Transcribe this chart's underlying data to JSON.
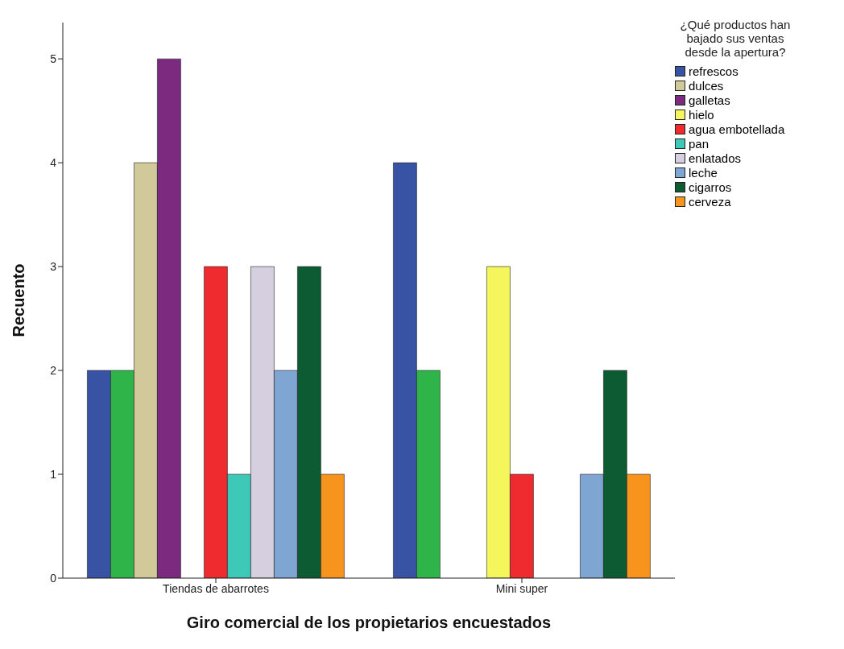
{
  "chart_data": {
    "type": "bar",
    "xlabel": "Giro comercial de los propietarios encuestados",
    "ylabel": "Recuento",
    "legend_title": "¿Qué productos han bajado sus ventas desde la apertura?",
    "categories": [
      "Tiendas de abarrotes",
      "Mini super"
    ],
    "ylim": [
      0,
      5.35
    ],
    "yticks": [
      0,
      1,
      2,
      3,
      4,
      5
    ],
    "legend": "right",
    "series": [
      {
        "name": "refrescos",
        "color": "#3953a4",
        "values": [
          2,
          4
        ]
      },
      {
        "color": "#2fb44a",
        "values": [
          2,
          2
        ]
      },
      {
        "name": "dulces",
        "color": "#d2c99a",
        "values": [
          4,
          0
        ]
      },
      {
        "name": "galletas",
        "color": "#7b2a7f",
        "values": [
          5,
          0
        ]
      },
      {
        "name": "hielo",
        "color": "#f5f55c",
        "values": [
          0,
          3
        ]
      },
      {
        "name": "agua embotellada",
        "color": "#ef2b2f",
        "values": [
          3,
          1
        ]
      },
      {
        "name": "pan",
        "color": "#3ec8b8",
        "values": [
          1,
          0
        ]
      },
      {
        "name": "enlatados",
        "color": "#d6cfe0",
        "values": [
          3,
          0
        ]
      },
      {
        "name": "leche",
        "color": "#7fa6d2",
        "values": [
          2,
          1
        ]
      },
      {
        "name": "cigarros",
        "color": "#0d5b32",
        "values": [
          3,
          2
        ]
      },
      {
        "name": "cerveza",
        "color": "#f7941d",
        "values": [
          1,
          1
        ]
      }
    ]
  }
}
